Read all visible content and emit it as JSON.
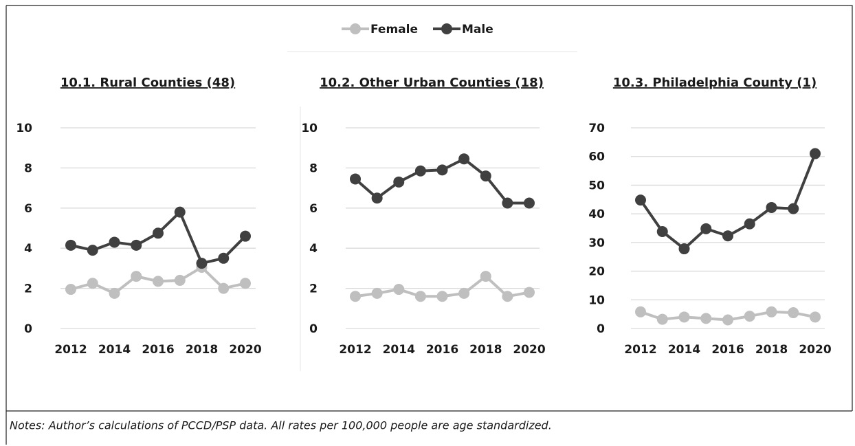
{
  "notes": "Notes: Author’s calculations of PCCD/PSP data. All rates per 100,000 people are age standardized.",
  "chart_data": [
    {
      "type": "line",
      "title": "10.1. Rural Counties (48)",
      "x": [
        2012,
        2013,
        2014,
        2015,
        2016,
        2017,
        2018,
        2019,
        2020
      ],
      "xlim": [
        2012,
        2020
      ],
      "xticks": [
        2012,
        2014,
        2016,
        2018,
        2020
      ],
      "ylim": [
        0,
        10
      ],
      "yticks": [
        0,
        2,
        4,
        6,
        8,
        10
      ],
      "grid": true,
      "series": [
        {
          "name": "Female",
          "color": "#bfbfbf",
          "values": [
            1.95,
            2.25,
            1.75,
            2.6,
            2.35,
            2.4,
            3.05,
            2.0,
            2.25
          ]
        },
        {
          "name": "Male",
          "color": "#404040",
          "values": [
            4.15,
            3.9,
            4.3,
            4.15,
            4.75,
            5.8,
            3.25,
            3.5,
            4.6
          ]
        }
      ]
    },
    {
      "type": "line",
      "title": "10.2. Other Urban Counties (18)",
      "x": [
        2012,
        2013,
        2014,
        2015,
        2016,
        2017,
        2018,
        2019,
        2020
      ],
      "xlim": [
        2012,
        2020
      ],
      "xticks": [
        2012,
        2014,
        2016,
        2018,
        2020
      ],
      "ylim": [
        0,
        10
      ],
      "yticks": [
        0,
        2,
        4,
        6,
        8,
        10
      ],
      "grid": true,
      "series": [
        {
          "name": "Female",
          "color": "#bfbfbf",
          "values": [
            1.6,
            1.75,
            1.95,
            1.6,
            1.6,
            1.75,
            2.6,
            1.6,
            1.8
          ]
        },
        {
          "name": "Male",
          "color": "#404040",
          "values": [
            7.45,
            6.5,
            7.3,
            7.85,
            7.9,
            8.45,
            7.6,
            6.25,
            6.25
          ]
        }
      ]
    },
    {
      "type": "line",
      "title": "10.3. Philadelphia County (1)",
      "x": [
        2012,
        2013,
        2014,
        2015,
        2016,
        2017,
        2018,
        2019,
        2020
      ],
      "xlim": [
        2012,
        2020
      ],
      "xticks": [
        2012,
        2014,
        2016,
        2018,
        2020
      ],
      "ylim": [
        0,
        70
      ],
      "yticks": [
        0,
        10,
        20,
        30,
        40,
        50,
        60,
        70
      ],
      "grid": true,
      "series": [
        {
          "name": "Female",
          "color": "#bfbfbf",
          "values": [
            5.8,
            3.2,
            4.0,
            3.5,
            3.0,
            4.3,
            5.8,
            5.5,
            4.0
          ]
        },
        {
          "name": "Male",
          "color": "#404040",
          "values": [
            44.8,
            33.8,
            27.8,
            34.8,
            32.3,
            36.5,
            42.2,
            41.8,
            61.0
          ]
        }
      ]
    }
  ]
}
